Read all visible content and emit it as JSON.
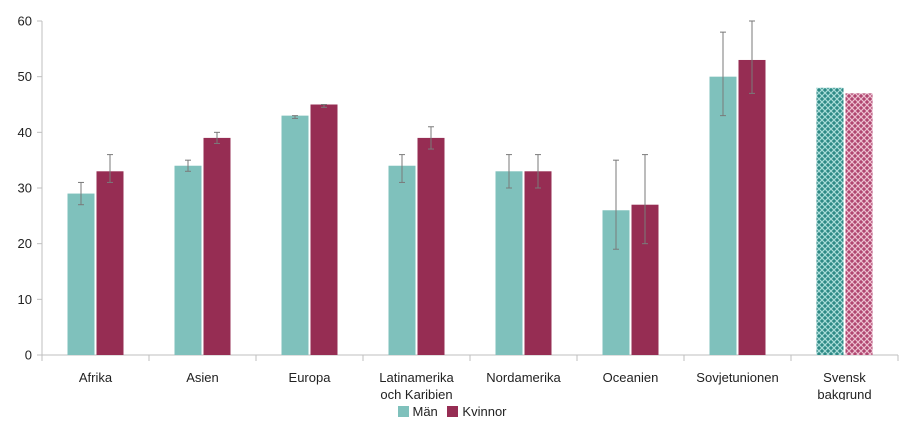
{
  "chart_data": {
    "type": "bar",
    "categories": [
      [
        "Afrika"
      ],
      [
        "Asien"
      ],
      [
        "Europa"
      ],
      [
        "Latinamerika",
        "och Karibien"
      ],
      [
        "Nordamerika"
      ],
      [
        "Oceanien"
      ],
      [
        "Sovjetunionen"
      ],
      [
        "Svensk",
        "bakgrund"
      ]
    ],
    "series": [
      {
        "name": "Män",
        "color": "#7fc1bc",
        "values": [
          29,
          34,
          43,
          34,
          33,
          26,
          50,
          48
        ],
        "error_low": [
          27,
          33,
          42.5,
          31,
          30,
          19,
          43,
          null
        ],
        "error_high": [
          31,
          35,
          43,
          36,
          36,
          35,
          58,
          null
        ]
      },
      {
        "name": "Kvinnor",
        "color": "#962d53",
        "values": [
          33,
          39,
          45,
          39,
          33,
          27,
          53,
          47
        ],
        "error_low": [
          31,
          38,
          44.5,
          37,
          30,
          20,
          47,
          null
        ],
        "error_high": [
          36,
          40,
          45,
          41,
          36,
          36,
          60,
          null
        ]
      }
    ],
    "hatched_categories": [
      7
    ],
    "ylim": [
      0,
      60
    ],
    "yticks": [
      0,
      10,
      20,
      30,
      40,
      50,
      60
    ],
    "gridlines": false,
    "legend_position": "bottom-center"
  }
}
